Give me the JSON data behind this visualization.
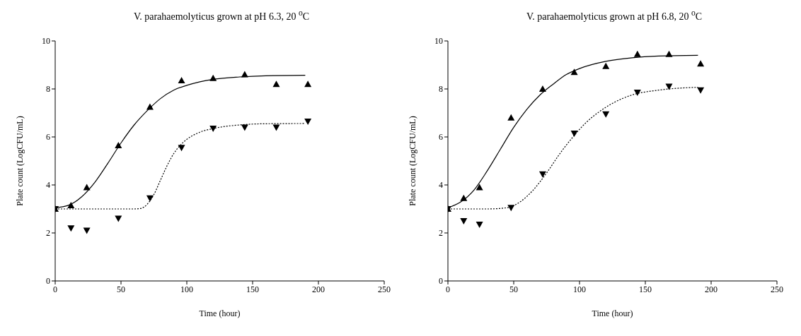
{
  "chart_data": [
    {
      "type": "scatter",
      "title": "V. parahaemolyticus grown at pH 6.3, 20 $^{o}$C",
      "xlabel": "Time (hour)",
      "ylabel": "Plate count (LogCFU/mL)",
      "xlim": [
        0,
        250
      ],
      "xticks": [
        0,
        50,
        100,
        150,
        200,
        250
      ],
      "ylim": [
        0,
        10
      ],
      "yticks": [
        0,
        2,
        4,
        6,
        8,
        10
      ],
      "grid": false,
      "legend": false,
      "series": [
        {
          "marker": "triangle",
          "color": "#000000",
          "x": [
            0,
            12,
            24,
            48,
            72,
            96,
            120,
            144,
            168,
            192
          ],
          "values": [
            3.0,
            3.15,
            3.9,
            5.65,
            7.25,
            8.35,
            8.45,
            8.6,
            8.2,
            8.2
          ]
        },
        {
          "marker": "triangle-down",
          "color": "#000000",
          "x": [
            0,
            12,
            24,
            48,
            72,
            96,
            120,
            144,
            168,
            192
          ],
          "values": [
            3.0,
            2.2,
            2.1,
            2.6,
            3.45,
            5.55,
            6.35,
            6.4,
            6.4,
            6.65
          ]
        },
        {
          "type": "line",
          "line_style": "solid",
          "marker": "none",
          "color": "#000000",
          "x": [
            0,
            10,
            20,
            30,
            40,
            50,
            60,
            70,
            80,
            90,
            100,
            110,
            120,
            140,
            160,
            190
          ],
          "values": [
            3.05,
            3.15,
            3.5,
            4.1,
            4.9,
            5.75,
            6.5,
            7.1,
            7.6,
            7.95,
            8.15,
            8.3,
            8.4,
            8.5,
            8.55,
            8.57
          ]
        },
        {
          "type": "line",
          "line_style": "dotted",
          "marker": "none",
          "color": "#000000",
          "x": [
            0,
            60,
            65,
            70,
            75,
            80,
            85,
            90,
            95,
            100,
            110,
            120,
            140,
            160,
            190
          ],
          "values": [
            3.0,
            3.0,
            3.02,
            3.2,
            3.6,
            4.2,
            4.8,
            5.3,
            5.65,
            5.9,
            6.2,
            6.35,
            6.5,
            6.55,
            6.56
          ]
        }
      ]
    },
    {
      "type": "scatter",
      "title": "V. parahaemolyticus grown at pH 6.8, 20 $^{o}$C",
      "xlabel": "Time (hour)",
      "ylabel": "Plate count (LogCFU/mL)",
      "xlim": [
        0,
        250
      ],
      "xticks": [
        0,
        50,
        100,
        150,
        200,
        250
      ],
      "ylim": [
        0,
        10
      ],
      "yticks": [
        0,
        2,
        4,
        6,
        8,
        10
      ],
      "grid": false,
      "legend": false,
      "series": [
        {
          "marker": "triangle",
          "color": "#000000",
          "x": [
            0,
            12,
            24,
            48,
            72,
            96,
            120,
            144,
            168,
            192
          ],
          "values": [
            3.0,
            3.45,
            3.9,
            6.8,
            8.0,
            8.7,
            8.95,
            9.45,
            9.45,
            9.05
          ]
        },
        {
          "marker": "triangle-down",
          "color": "#000000",
          "x": [
            0,
            12,
            24,
            48,
            72,
            96,
            120,
            144,
            168,
            192
          ],
          "values": [
            3.0,
            2.5,
            2.35,
            3.05,
            4.45,
            6.15,
            6.95,
            7.85,
            8.1,
            7.95
          ]
        },
        {
          "type": "line",
          "line_style": "solid",
          "marker": "none",
          "color": "#000000",
          "x": [
            0,
            10,
            20,
            30,
            40,
            50,
            60,
            70,
            80,
            90,
            100,
            120,
            140,
            160,
            190
          ],
          "values": [
            3.05,
            3.3,
            3.8,
            4.6,
            5.5,
            6.4,
            7.15,
            7.75,
            8.2,
            8.6,
            8.85,
            9.15,
            9.3,
            9.37,
            9.4
          ]
        },
        {
          "type": "line",
          "line_style": "dotted",
          "marker": "none",
          "color": "#000000",
          "x": [
            0,
            30,
            45,
            55,
            65,
            75,
            85,
            95,
            105,
            115,
            125,
            140,
            160,
            190
          ],
          "values": [
            3.0,
            3.0,
            3.05,
            3.3,
            3.8,
            4.5,
            5.3,
            6.0,
            6.6,
            7.05,
            7.4,
            7.75,
            7.95,
            8.07
          ]
        }
      ]
    }
  ]
}
